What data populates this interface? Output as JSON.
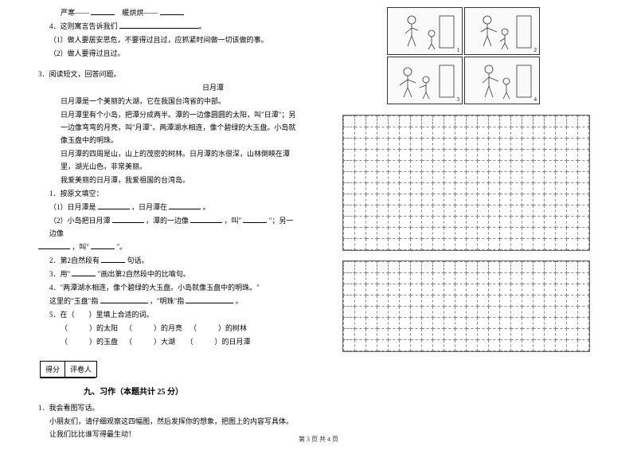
{
  "left": {
    "l1a": "严寒——",
    "l1b": "暖烘烘——",
    "l2": "4．这则寓言告诉我们",
    "l3": "（1）做人要居安思危，不要得过且过，应抓紧时间做一切该做的事。",
    "l4": "（2）做人要得过且过。",
    "q3": "3．阅读短文，回答问题。",
    "title1": "日月潭",
    "p1": "日月潭是一个美丽的大湖，它在我国台湾省的中部。",
    "p2": "日月潭里有个小岛，把潭分成两半。潭的一边像圆圆的太阳，叫\"日潭\"；另一边像弯弯的月亮，叫\"月潭\"。两潭湖水相连，像个碧绿的大玉盘。小岛就像玉盘中的明珠。",
    "p3": "日月潭的四周是山，山上的茂密的树林。日月潭的水很深，山林倒映在潭里，湖光山色，非常美丽。",
    "p4": "我爱美丽的日月潭，我爱祖国的台湾岛。",
    "sq1": "1．按原文填空：",
    "sq1a": "（1）日月潭是",
    "sq1a2": "，日月潭在",
    "sq1a3": "。",
    "sq1b": "（2）小岛把日月潭",
    "sq1b2": "，潭的一边像",
    "sq1b3": "，叫\"",
    "sq1b4": "\"；另一边像",
    "sq1c2": "，叫\"",
    "sq1c3": "\"。",
    "sq2": "2．第2自然段有",
    "sq2b": "句话。",
    "sq3": "3．用\"",
    "sq3b": "\"画出第2自然段中的比喻句。",
    "sq4": "4．\"两潭湖水相连，像个碧绿的大玉盘。小岛就像玉盘中的明珠。\"",
    "sq4b": "这里的\"玉盘\"指",
    "sq4c": "，\"明珠\"指",
    "sq4d": "。",
    "sq5": "5．在（　　）里填上合适的词。",
    "opt1a": "（　　　）的太阳",
    "opt1b": "（　　　）的月亮",
    "opt1c": "（　　　）的树林",
    "opt2a": "（　　　）的玉盘",
    "opt2b": "（　　　）大湖",
    "opt2c": "（　　　）的日月潭",
    "score1": "得分",
    "score2": "评卷人",
    "section9": "九、习作（本题共计 25 分）",
    "w1": "1．我会看图写话。",
    "w2": "小朋友们，请仔细观察这四幅图，然后发挥你的想象，把图上的内容写具体。让我们比比谁写得最生动！"
  },
  "footer": "第 3 页 共 4 页",
  "grid": {
    "cols": 22,
    "rows1": 12,
    "rows2": 8
  }
}
